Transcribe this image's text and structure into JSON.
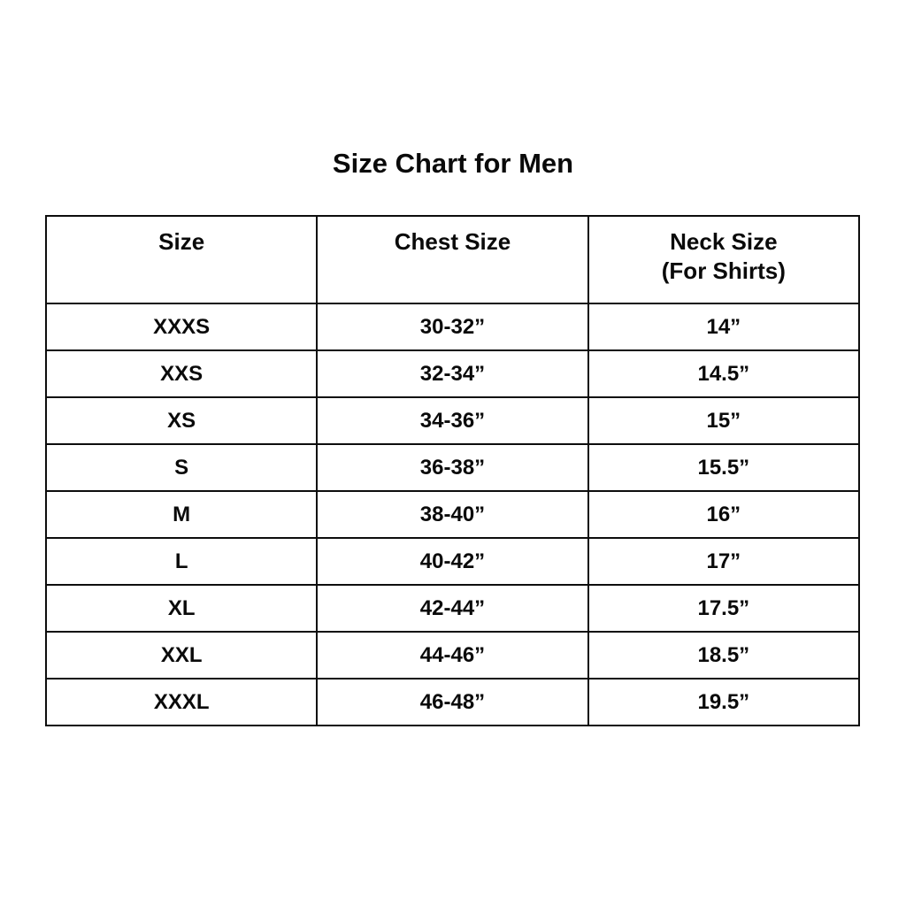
{
  "page": {
    "title": "Size Chart for Men",
    "background": "#ffffff"
  },
  "colors": {
    "text": "#0a0a0a",
    "border": "#0d0d0d",
    "background": "#ffffff"
  },
  "chart_data": {
    "type": "table",
    "title": "Size Chart for Men",
    "columns": [
      "Size",
      "Chest Size",
      "Neck Size (For Shirts)"
    ],
    "rows": [
      [
        "XXXS",
        "30-32”",
        "14”"
      ],
      [
        "XXS",
        "32-34”",
        "14.5”"
      ],
      [
        "XS",
        "34-36”",
        "15”"
      ],
      [
        "S",
        "36-38”",
        "15.5”"
      ],
      [
        "M",
        "38-40”",
        "16”"
      ],
      [
        "L",
        "40-42”",
        "17”"
      ],
      [
        "XL",
        "42-44”",
        "17.5”"
      ],
      [
        "XXL",
        "44-46”",
        "18.5”"
      ],
      [
        "XXXL",
        "46-48”",
        "19.5”"
      ]
    ]
  },
  "table": {
    "headers": [
      {
        "label": "Size",
        "sublabel": ""
      },
      {
        "label": "Chest Size",
        "sublabel": ""
      },
      {
        "label": "Neck Size",
        "sublabel": "(For Shirts)"
      }
    ],
    "rows": [
      {
        "size": "XXXS",
        "chest": "30-32”",
        "neck": "14”"
      },
      {
        "size": "XXS",
        "chest": "32-34”",
        "neck": "14.5”"
      },
      {
        "size": "XS",
        "chest": "34-36”",
        "neck": "15”"
      },
      {
        "size": "S",
        "chest": "36-38”",
        "neck": "15.5”"
      },
      {
        "size": "M",
        "chest": "38-40”",
        "neck": "16”"
      },
      {
        "size": "L",
        "chest": "40-42”",
        "neck": "17”"
      },
      {
        "size": "XL",
        "chest": "42-44”",
        "neck": "17.5”"
      },
      {
        "size": "XXL",
        "chest": "44-46”",
        "neck": "18.5”"
      },
      {
        "size": "XXXL",
        "chest": "46-48”",
        "neck": "19.5”"
      }
    ]
  }
}
